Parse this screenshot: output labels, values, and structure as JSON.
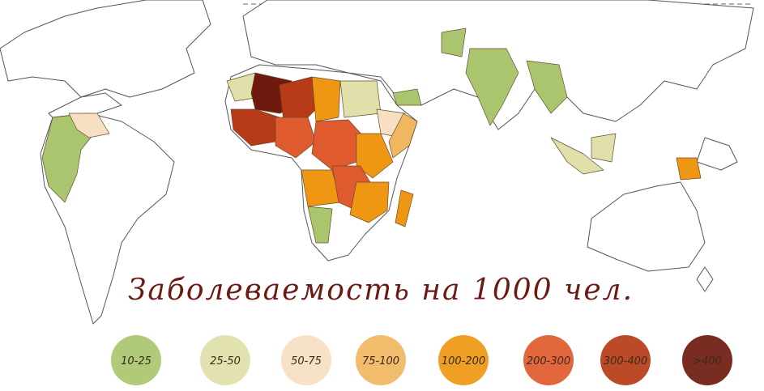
{
  "title": "Заболеваемость на 1000 чел.",
  "legend": [
    {
      "label": "10-25",
      "color": "#a9c66e"
    },
    {
      "label": "25-50",
      "color": "#e0e0aa"
    },
    {
      "label": "50-75",
      "color": "#f7dfc2"
    },
    {
      "label": "75-100",
      "color": "#f0b660"
    },
    {
      "label": "100-200",
      "color": "#ef9712"
    },
    {
      "label": "200-300",
      "color": "#df5a2c"
    },
    {
      "label": "300-400",
      "color": "#b63b16"
    },
    {
      "label": ">400",
      "color": "#6e1a0f"
    }
  ]
}
